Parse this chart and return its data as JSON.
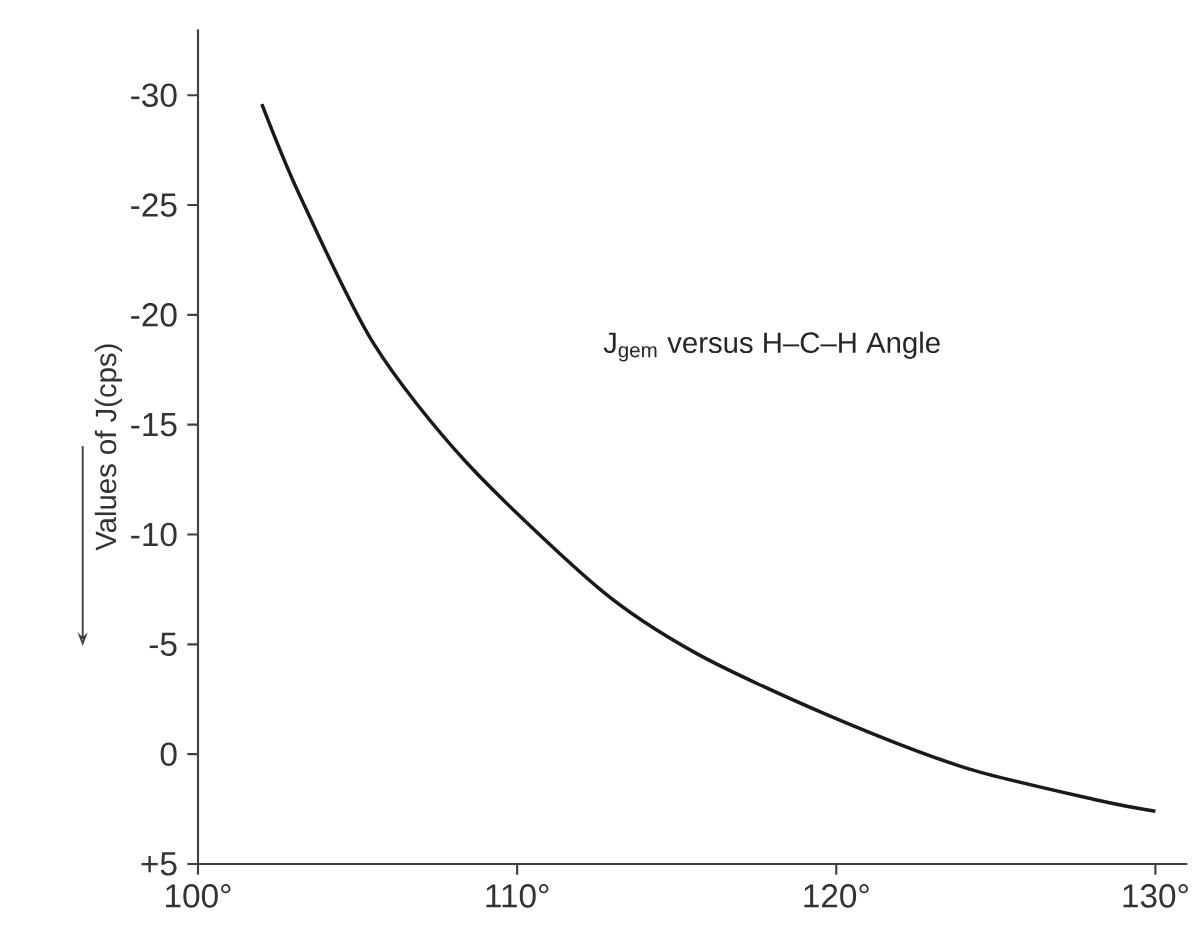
{
  "chart_data": {
    "type": "line",
    "ylabel": "Values of J(cps)",
    "x": [
      102.0,
      103.2,
      105.5,
      108.4,
      112.6,
      115.6,
      119.7,
      124.0,
      128.2,
      130.0
    ],
    "series": [
      {
        "color": "#1a1a1a",
        "values": [
          -29.6,
          -25.4,
          -18.7,
          -13.3,
          -7.5,
          -4.6,
          -1.8,
          0.6,
          2.1,
          2.6
        ]
      }
    ],
    "xlim": [
      100,
      131
    ],
    "ylim": [
      5,
      -33
    ],
    "xticks": [
      {
        "value": 100,
        "label": "100°"
      },
      {
        "value": 110,
        "label": "110°"
      },
      {
        "value": 120,
        "label": "120°"
      },
      {
        "value": 130,
        "label": "130°"
      }
    ],
    "yticks": [
      -30,
      -25,
      -20,
      -15,
      -10,
      -5,
      0,
      {
        "value": 5,
        "label": "+5"
      }
    ],
    "annotations": [
      "J$_{gem}$ versus H–C–H Angle"
    ],
    "grid": false,
    "marker": "none",
    "line_style": "solid"
  }
}
